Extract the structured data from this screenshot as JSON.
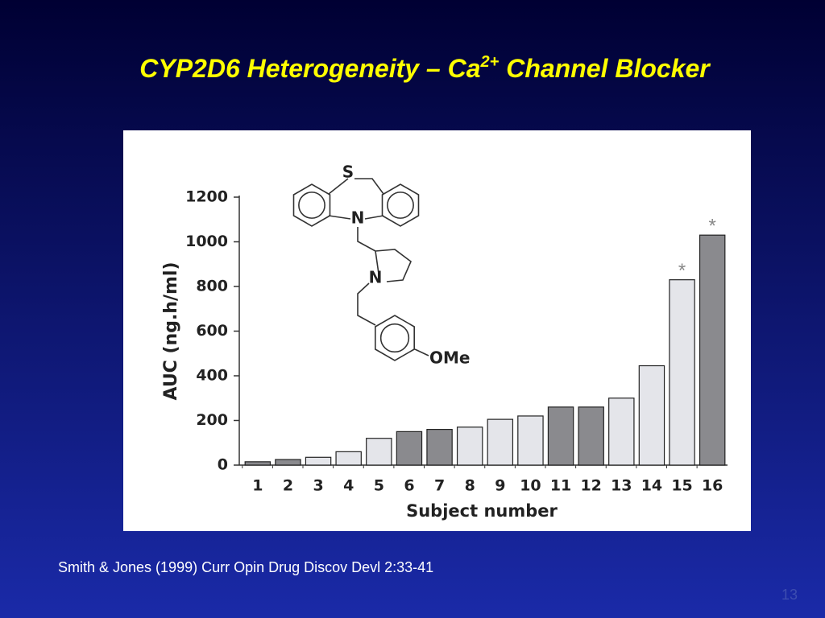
{
  "slide": {
    "title": {
      "before": "CYP2D6 Heterogeneity – Ca",
      "sup": "2+",
      "after": " Channel Blocker"
    },
    "citation": "Smith & Jones (1999) Curr Opin Drug Discov Devl 2:33-41",
    "page_number": "13"
  },
  "structure": {
    "atoms": [
      "S",
      "N",
      "N",
      "OMe"
    ]
  },
  "chart_data": {
    "type": "bar",
    "x_label": "Subject number",
    "y_label": "AUC (ng.h/ml)",
    "categories": [
      "1",
      "2",
      "3",
      "4",
      "5",
      "6",
      "7",
      "8",
      "9",
      "10",
      "11",
      "12",
      "13",
      "14",
      "15",
      "16"
    ],
    "values": [
      15,
      25,
      35,
      60,
      120,
      150,
      160,
      170,
      205,
      220,
      260,
      260,
      300,
      445,
      830,
      1030
    ],
    "colors": [
      "#8a8a8e",
      "#8a8a8e",
      "#e4e5ea",
      "#e4e5ea",
      "#e4e5ea",
      "#8a8a8e",
      "#8a8a8e",
      "#e4e5ea",
      "#e4e5ea",
      "#e4e5ea",
      "#8a8a8e",
      "#8a8a8e",
      "#e4e5ea",
      "#e4e5ea",
      "#e4e5ea",
      "#8a8a8e"
    ],
    "annotations": [
      {
        "x": "15",
        "text": "*"
      },
      {
        "x": "16",
        "text": "*"
      }
    ],
    "ylim": [
      0,
      1200
    ],
    "yticks": [
      0,
      200,
      400,
      600,
      800,
      1000,
      1200
    ],
    "grid": false
  }
}
